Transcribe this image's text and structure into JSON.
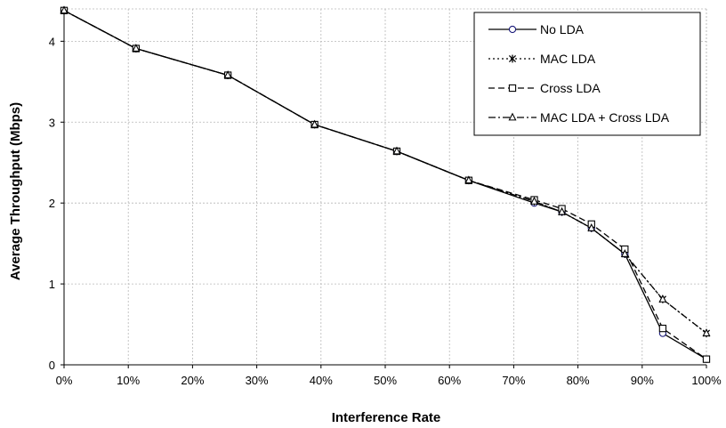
{
  "chart_data": {
    "type": "line",
    "title": "",
    "xlabel": "Interference Rate",
    "ylabel": "Average Throughput (Mbps)",
    "xlim": [
      0,
      100
    ],
    "ylim": [
      0,
      4.4
    ],
    "x_ticks": [
      0,
      10,
      20,
      30,
      40,
      50,
      60,
      70,
      80,
      90,
      100
    ],
    "x_tick_labels": [
      "0%",
      "10%",
      "20%",
      "30%",
      "40%",
      "50%",
      "60%",
      "70%",
      "80%",
      "90%",
      "100%"
    ],
    "y_ticks": [
      0,
      1,
      2,
      3,
      4
    ],
    "y_tick_labels": [
      "0",
      "1",
      "2",
      "3",
      "4"
    ],
    "grid": true,
    "legend_position": "top-right",
    "x": [
      0,
      11.2,
      25.5,
      39.0,
      51.8,
      63.0,
      73.2,
      77.5,
      82.1,
      87.3,
      93.2,
      100
    ],
    "series": [
      {
        "name": "No LDA",
        "marker": "circle",
        "line_style": "solid",
        "values": [
          4.38,
          3.91,
          3.58,
          2.97,
          2.64,
          2.28,
          2.0,
          1.89,
          1.69,
          1.37,
          0.39,
          0.07
        ]
      },
      {
        "name": "MAC LDA",
        "marker": "asterisk",
        "line_style": "dotted",
        "values": [
          4.38,
          3.91,
          3.58,
          2.97,
          2.64,
          2.28,
          2.02,
          1.89,
          1.69,
          1.37,
          0.81,
          0.39
        ]
      },
      {
        "name": "Cross LDA",
        "marker": "square",
        "line_style": "dashed",
        "values": [
          4.38,
          3.91,
          3.58,
          2.97,
          2.64,
          2.28,
          2.04,
          1.93,
          1.74,
          1.43,
          0.45,
          0.07
        ]
      },
      {
        "name": "MAC LDA + Cross LDA",
        "marker": "triangle",
        "line_style": "dashdot",
        "values": [
          4.38,
          3.91,
          3.58,
          2.97,
          2.64,
          2.28,
          2.02,
          1.89,
          1.69,
          1.37,
          0.81,
          0.39
        ]
      }
    ]
  }
}
